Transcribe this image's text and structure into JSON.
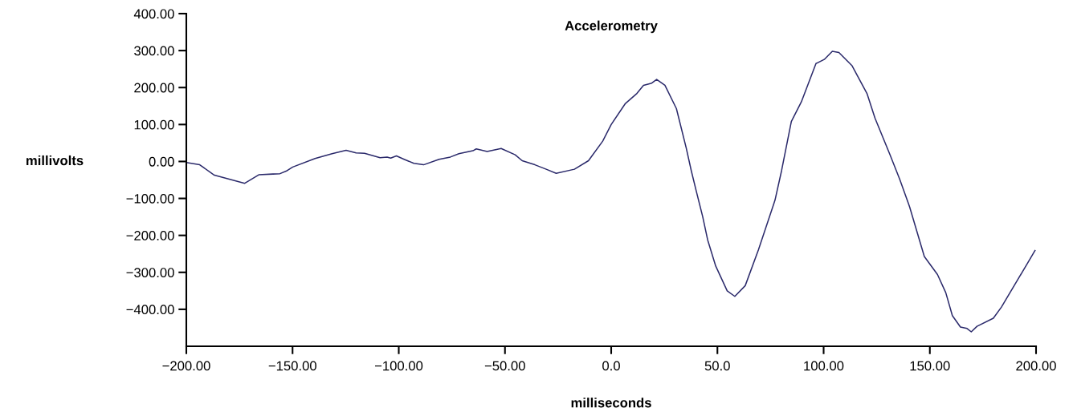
{
  "chart_data": {
    "type": "line",
    "title": "Accelerometry",
    "xlabel": "milliseconds",
    "ylabel": "millivolts",
    "xlim": [
      -200,
      200
    ],
    "ylim": [
      -500,
      400
    ],
    "xticks": [
      {
        "value": -200,
        "label": "−200.00"
      },
      {
        "value": -150,
        "label": "−150.00"
      },
      {
        "value": -100,
        "label": "−100.00"
      },
      {
        "value": -50,
        "label": "−50.00"
      },
      {
        "value": 0,
        "label": "0.0"
      },
      {
        "value": 50,
        "label": "50.0"
      },
      {
        "value": 100,
        "label": "100.00"
      },
      {
        "value": 150,
        "label": "150.00"
      },
      {
        "value": 200,
        "label": "200.00"
      }
    ],
    "yticks": [
      {
        "value": 400,
        "label": "400.00"
      },
      {
        "value": 300,
        "label": "300.00"
      },
      {
        "value": 200,
        "label": "200.00"
      },
      {
        "value": 100,
        "label": "100.00"
      },
      {
        "value": 0,
        "label": "0.00"
      },
      {
        "value": -100,
        "label": "−100.00"
      },
      {
        "value": -200,
        "label": "−200.00"
      },
      {
        "value": -300,
        "label": "−300.00"
      },
      {
        "value": -400,
        "label": "−400.00"
      }
    ],
    "grid": false,
    "marker": "none",
    "line_style": "solid",
    "series": [
      {
        "color": "#2b2a6b",
        "x": [
          -200,
          -193.7,
          -186.8,
          -172.5,
          -165.9,
          -159.2,
          -155.9,
          -152.6,
          -149.9,
          -139.4,
          -131.4,
          -124.8,
          -120.1,
          -116.1,
          -108.8,
          -105.5,
          -103.8,
          -101.1,
          -97.5,
          -92.9,
          -88.3,
          -81,
          -75.7,
          -71.7,
          -65.1,
          -63.5,
          -58.4,
          -51.8,
          -45.2,
          -41.9,
          -35.9,
          -30.6,
          -25.9,
          -17.3,
          -10.7,
          -4,
          0,
          6.7,
          12.1,
          15.2,
          19.1,
          21.4,
          25.3,
          30.7,
          35.3,
          37.7,
          40,
          43.1,
          45.4,
          49.2,
          54.6,
          58.2,
          63.1,
          69.3,
          77.1,
          80.2,
          84.8,
          89.5,
          96.4,
          100.3,
          104.1,
          107.2,
          113.4,
          120.4,
          124.2,
          131.2,
          135.8,
          140.5,
          147.4,
          153.6,
          157.5,
          160.6,
          164.4,
          167.5,
          169.5,
          172.2,
          179.9,
          183.7,
          196.1,
          199.5
        ],
        "values": [
          -3,
          -9,
          -37,
          -59,
          -36,
          -34,
          -33,
          -25,
          -15,
          8,
          21,
          30,
          23,
          22,
          10,
          12,
          9,
          15,
          6,
          -5,
          -9,
          6,
          12,
          21,
          29,
          34,
          27,
          35,
          18,
          2,
          -9,
          -21,
          -32,
          -21,
          2,
          55,
          100,
          157,
          184,
          206,
          212,
          222,
          206,
          143,
          37,
          -25,
          -79,
          -150,
          -212,
          -283,
          -350,
          -365,
          -336,
          -239,
          -105,
          -25,
          108,
          161,
          265,
          276,
          298,
          295,
          259,
          184,
          117,
          19,
          -48,
          -123,
          -257,
          -306,
          -355,
          -417,
          -448,
          -452,
          -461,
          -446,
          -424,
          -394,
          -274,
          -241
        ]
      }
    ]
  }
}
